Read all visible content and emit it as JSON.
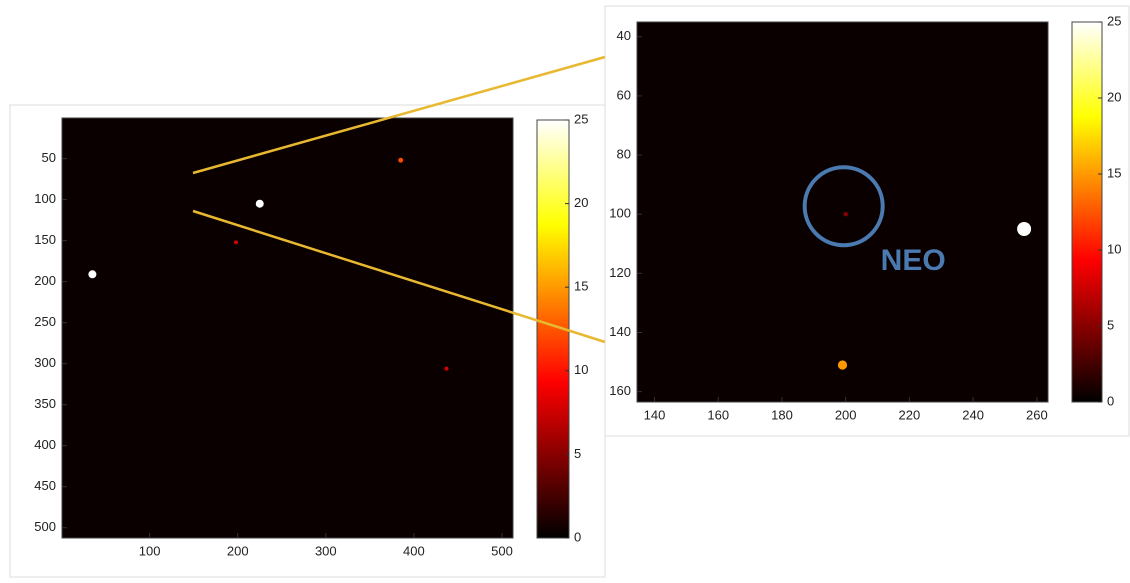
{
  "chart_data": [
    {
      "type": "image",
      "colormap": "hot",
      "y_reversed": true,
      "xlim": [
        0.5,
        512.5
      ],
      "ylim": [
        0.5,
        512.5
      ],
      "xticks": [
        100,
        200,
        300,
        400,
        500
      ],
      "yticks": [
        50,
        100,
        150,
        200,
        250,
        300,
        350,
        400,
        450,
        500
      ],
      "clim": [
        0,
        25
      ],
      "cticks": [
        0,
        5,
        10,
        15,
        20,
        25
      ],
      "x": [
        225,
        35,
        385,
        437,
        198
      ],
      "y": [
        105,
        191,
        52,
        306,
        152
      ],
      "values": [
        25,
        25,
        12,
        8,
        8
      ]
    },
    {
      "type": "image",
      "colormap": "hot",
      "y_reversed": true,
      "xlim": [
        134.5,
        263.5
      ],
      "ylim": [
        35,
        163.5
      ],
      "xticks": [
        140,
        160,
        180,
        200,
        220,
        240,
        260
      ],
      "yticks": [
        40,
        60,
        80,
        100,
        120,
        140,
        160
      ],
      "clim": [
        0,
        25
      ],
      "cticks": [
        0,
        5,
        10,
        15,
        20,
        25
      ],
      "x": [
        256,
        199,
        200
      ],
      "y": [
        105,
        151,
        100
      ],
      "values": [
        25,
        15,
        5
      ],
      "annotations": [
        {
          "text": "NEO",
          "x": 200,
          "y": 100
        }
      ]
    }
  ]
}
